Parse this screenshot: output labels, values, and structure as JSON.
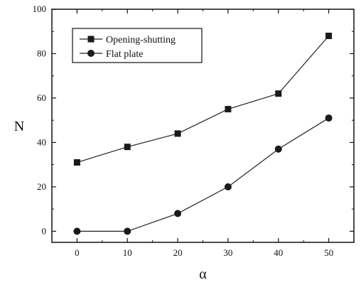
{
  "chart_data": {
    "type": "line",
    "xlabel": "α",
    "ylabel": "N",
    "x": [
      0,
      10,
      20,
      30,
      40,
      50
    ],
    "xlim": [
      -5,
      55
    ],
    "ylim": [
      -5,
      100
    ],
    "xticks": [
      0,
      10,
      20,
      30,
      40,
      50
    ],
    "yticks": [
      0,
      20,
      40,
      60,
      80,
      100
    ],
    "grid": false,
    "legend_position": "top-left",
    "series": [
      {
        "name": "Opening-shutting",
        "marker": "square",
        "values": [
          31,
          38,
          44,
          55,
          62,
          88
        ]
      },
      {
        "name": "Flat plate",
        "marker": "circle",
        "values": [
          0,
          0,
          8,
          20,
          37,
          51
        ]
      }
    ]
  }
}
